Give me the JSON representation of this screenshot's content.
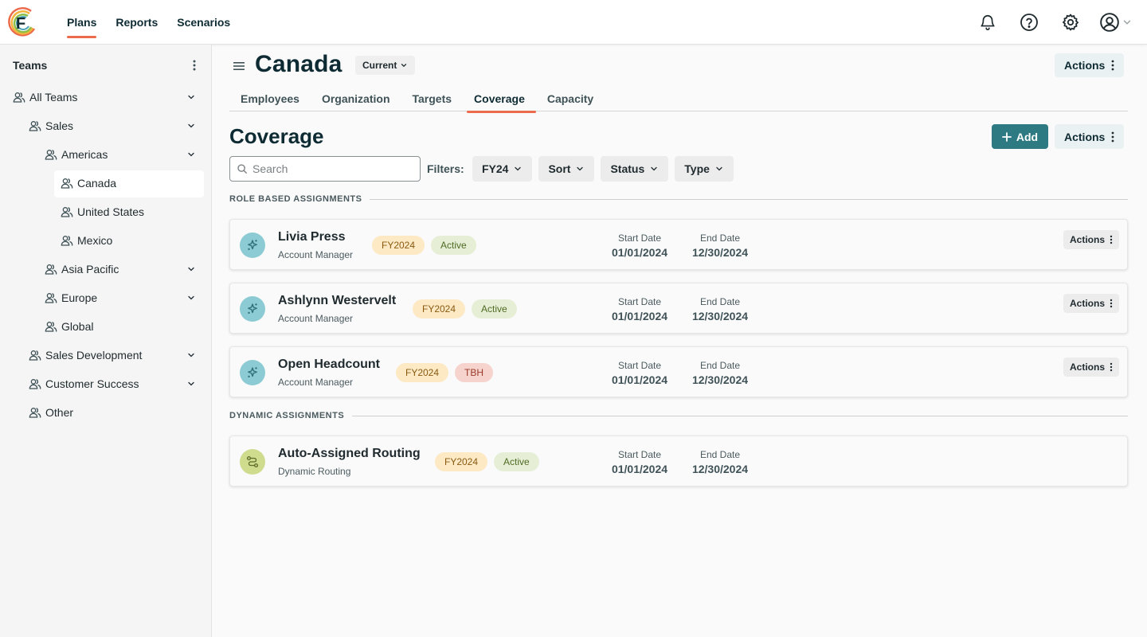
{
  "topnav": {
    "items": [
      {
        "label": "Plans",
        "active": true
      },
      {
        "label": "Reports",
        "active": false
      },
      {
        "label": "Scenarios",
        "active": false
      }
    ],
    "icons": [
      "bell-icon",
      "help-icon",
      "gear-icon",
      "user-avatar-icon",
      "chevron-down-icon"
    ]
  },
  "sidebar": {
    "title": "Teams",
    "items": [
      {
        "label": "All Teams",
        "level": 0,
        "expandable": true,
        "selected": false
      },
      {
        "label": "Sales",
        "level": 1,
        "expandable": true,
        "selected": false
      },
      {
        "label": "Americas",
        "level": 2,
        "expandable": true,
        "selected": false
      },
      {
        "label": "Canada",
        "level": 3,
        "expandable": false,
        "selected": true
      },
      {
        "label": "United States",
        "level": 3,
        "expandable": false,
        "selected": false
      },
      {
        "label": "Mexico",
        "level": 3,
        "expandable": false,
        "selected": false
      },
      {
        "label": "Asia Pacific",
        "level": 2,
        "expandable": true,
        "selected": false
      },
      {
        "label": "Europe",
        "level": 2,
        "expandable": true,
        "selected": false
      },
      {
        "label": "Global",
        "level": 2,
        "expandable": false,
        "selected": false
      },
      {
        "label": "Sales Development",
        "level": 1,
        "expandable": true,
        "selected": false
      },
      {
        "label": "Customer Success",
        "level": 1,
        "expandable": true,
        "selected": false
      },
      {
        "label": "Other",
        "level": 1,
        "expandable": false,
        "selected": false
      }
    ]
  },
  "header": {
    "title": "Canada",
    "version": "Current",
    "actions_label": "Actions"
  },
  "tabs": [
    {
      "label": "Employees",
      "active": false
    },
    {
      "label": "Organization",
      "active": false
    },
    {
      "label": "Targets",
      "active": false
    },
    {
      "label": "Coverage",
      "active": true
    },
    {
      "label": "Capacity",
      "active": false
    }
  ],
  "coverage": {
    "title": "Coverage",
    "add_label": "Add",
    "actions_label": "Actions",
    "search_placeholder": "Search",
    "search_value": "",
    "filters_label": "Filters:",
    "filters": [
      "FY24",
      "Sort",
      "Status",
      "Type"
    ]
  },
  "groups": [
    {
      "label": "ROLE BASED ASSIGNMENTS",
      "cards": [
        {
          "name": "Livia Press",
          "role": "Account Manager",
          "badges": [
            {
              "text": "FY2024",
              "kind": "fy"
            },
            {
              "text": "Active",
              "kind": "active"
            }
          ],
          "start_label": "Start Date",
          "start": "01/01/2024",
          "end_label": "End Date",
          "end": "12/30/2024",
          "actions": "Actions",
          "icon": "sparkle-icon",
          "icon_color": "#8ccbd3"
        },
        {
          "name": "Ashlynn Westervelt",
          "role": "Account Manager",
          "badges": [
            {
              "text": "FY2024",
              "kind": "fy"
            },
            {
              "text": "Active",
              "kind": "active"
            }
          ],
          "start_label": "Start Date",
          "start": "01/01/2024",
          "end_label": "End Date",
          "end": "12/30/2024",
          "actions": "Actions",
          "icon": "sparkle-icon",
          "icon_color": "#8ccbd3"
        },
        {
          "name": "Open Headcount",
          "role": "Account Manager",
          "badges": [
            {
              "text": "FY2024",
              "kind": "fy"
            },
            {
              "text": "TBH",
              "kind": "tbh"
            }
          ],
          "start_label": "Start Date",
          "start": "01/01/2024",
          "end_label": "End Date",
          "end": "12/30/2024",
          "actions": "Actions",
          "icon": "sparkle-icon",
          "icon_color": "#8ccbd3"
        }
      ]
    },
    {
      "label": "DYNAMIC ASSIGNMENTS",
      "cards": [
        {
          "name": "Auto-Assigned Routing",
          "role": "Dynamic Routing",
          "badges": [
            {
              "text": "FY2024",
              "kind": "fy"
            },
            {
              "text": "Active",
              "kind": "active"
            }
          ],
          "start_label": "Start Date",
          "start": "01/01/2024",
          "end_label": "End Date",
          "end": "12/30/2024",
          "actions": "",
          "icon": "route-icon",
          "icon_color": "#cfdc8e"
        }
      ]
    }
  ],
  "colors": {
    "accent": "#ec6b4c",
    "primary": "#2d7a82",
    "heading": "#0e2b33"
  }
}
